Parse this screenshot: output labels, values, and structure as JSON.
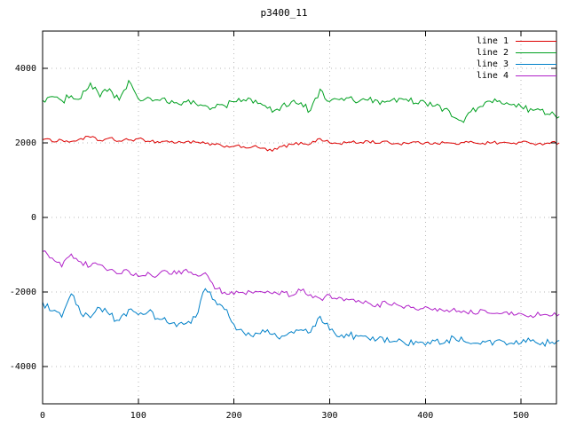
{
  "chart": {
    "title": "p3400_11"
  },
  "colors": {
    "background": "#ffffff",
    "border": "#000000",
    "grid": "#b8b8b8",
    "tick_text": "#000000"
  },
  "chart_data": {
    "type": "line",
    "title": "p3400_11",
    "xlabel": "",
    "ylabel": "",
    "xlim": [
      0,
      537
    ],
    "ylim": [
      -5000,
      5000
    ],
    "x_ticks": [
      0,
      100,
      200,
      300,
      400,
      500
    ],
    "y_ticks": [
      -4000,
      -2000,
      0,
      2000,
      4000
    ],
    "grid": true,
    "legend_position": "top-right",
    "x_step": 10,
    "series": [
      {
        "name": "line 1",
        "color": "#dd0000",
        "noise": 45,
        "values": [
          2100,
          2050,
          2080,
          2020,
          2120,
          2150,
          2060,
          2120,
          2050,
          2080,
          2100,
          2060,
          2030,
          2050,
          2000,
          2040,
          2010,
          1980,
          1950,
          1900,
          1920,
          1880,
          1900,
          1850,
          1780,
          1900,
          1950,
          2000,
          1980,
          2120,
          2000,
          1980,
          2020,
          2000,
          2050,
          2000,
          2030,
          1980,
          2000,
          2020,
          1990,
          2010,
          2000,
          1980,
          2000,
          2020,
          1990,
          2010,
          2000,
          1990,
          2010,
          2000,
          1980,
          2000,
          2000
        ]
      },
      {
        "name": "line 2",
        "color": "#00a020",
        "noise": 95,
        "values": [
          3150,
          3250,
          3100,
          3300,
          3200,
          3600,
          3250,
          3450,
          3150,
          3650,
          3150,
          3200,
          3150,
          3100,
          3050,
          3100,
          3050,
          3000,
          2950,
          3000,
          3100,
          3150,
          3100,
          3050,
          2820,
          3000,
          3100,
          3050,
          2850,
          3420,
          3100,
          3150,
          3200,
          3100,
          3150,
          3100,
          3150,
          3100,
          3150,
          3100,
          3050,
          3000,
          2900,
          2720,
          2520,
          2900,
          3000,
          3100,
          3050,
          3000,
          2950,
          2900,
          2850,
          2750,
          2700
        ]
      },
      {
        "name": "line 3",
        "color": "#0080c8",
        "noise": 95,
        "values": [
          -2300,
          -2500,
          -2700,
          -2050,
          -2600,
          -2700,
          -2400,
          -2600,
          -2800,
          -2500,
          -2600,
          -2500,
          -2700,
          -2800,
          -2900,
          -2850,
          -2700,
          -1900,
          -2250,
          -2450,
          -2900,
          -3100,
          -3200,
          -3050,
          -3100,
          -3200,
          -3100,
          -3000,
          -3100,
          -2650,
          -3000,
          -3200,
          -3150,
          -3200,
          -3250,
          -3300,
          -3250,
          -3300,
          -3400,
          -3350,
          -3450,
          -3300,
          -3350,
          -3200,
          -3300,
          -3350,
          -3300,
          -3400,
          -3350,
          -3400,
          -3350,
          -3300,
          -3400,
          -3350,
          -3300
        ]
      },
      {
        "name": "line 4",
        "color": "#b020c8",
        "noise": 70,
        "values": [
          -900,
          -1100,
          -1300,
          -1000,
          -1200,
          -1300,
          -1250,
          -1400,
          -1500,
          -1450,
          -1600,
          -1500,
          -1550,
          -1450,
          -1500,
          -1400,
          -1550,
          -1500,
          -1900,
          -2000,
          -2050,
          -2000,
          -2050,
          -2000,
          -2050,
          -2000,
          -2100,
          -1950,
          -2050,
          -2200,
          -2100,
          -2150,
          -2200,
          -2250,
          -2300,
          -2350,
          -2300,
          -2350,
          -2400,
          -2450,
          -2400,
          -2450,
          -2500,
          -2450,
          -2500,
          -2550,
          -2500,
          -2550,
          -2600,
          -2550,
          -2600,
          -2650,
          -2600,
          -2650,
          -2600
        ]
      }
    ]
  }
}
